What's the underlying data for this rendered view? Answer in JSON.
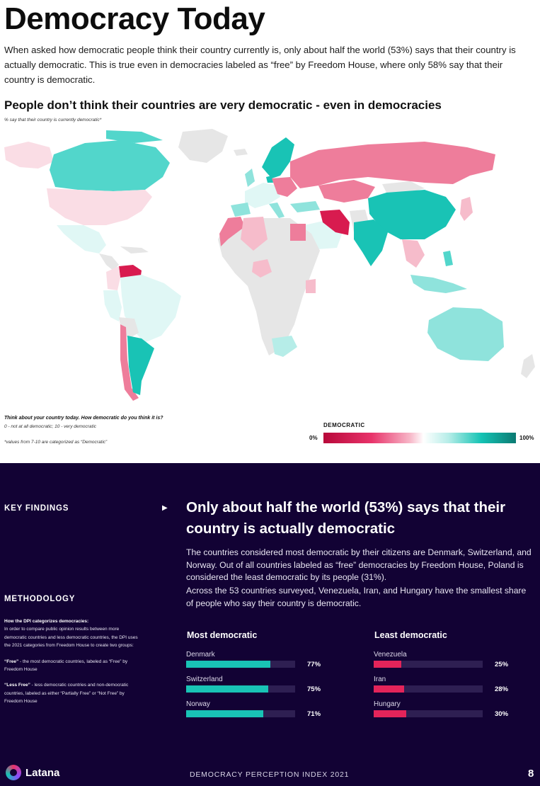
{
  "header": {
    "title": "Democracy Today",
    "intro": "When asked how democratic people think their country currently is, only about half the world (53%) says that their country is actually democratic. This is true even in democracies labeled as “free” by Freedom House, where only 58% say that their country is democratic."
  },
  "map": {
    "title": "People don’t think their countries are very democratic - even in democracies",
    "note": "% say that their country is currently democratic*",
    "question": "Think about your country today. How democratic do you think it is?",
    "scale_description": "0 - not at all democratic; 10 - very democratic",
    "values_note": "*values from 7-10 are categorized as “Democratic”",
    "legend": {
      "title": "DEMOCRATIC",
      "min_label": "0%",
      "max_label": "100%"
    },
    "colors": {
      "no_data": "#e6e6e6",
      "very_low": "#d81b4f",
      "low": "#ee7d9b",
      "mid_low": "#f6bccb",
      "light_low": "#fadde5",
      "light_high": "#e0f7f5",
      "mid_high": "#8fe3dc",
      "high": "#52d6cb",
      "very_high": "#19c3b5"
    }
  },
  "findings": {
    "key_findings_label": "KEY FINDINGS",
    "methodology_label": "METHODOLOGY",
    "methodology": {
      "heading": "How the DPI categorizes democracies:",
      "body": "In order to compare public opinion results between more democratic countries and less democratic countries, the DPI uses the 2021 categories from Freedom House to create two groups:",
      "free_term": "“Free”",
      "free_desc": " - the most democratic countries, labeled as “Free” by Freedom House",
      "less_free_term": "“Less Free”",
      "less_free_desc": " - less democratic countries and non-democratic countries, labeled as either “Partially Free” or “Not Free” by Freedom House"
    },
    "headline": "Only about half the world (53%) says that their country is actually democratic",
    "paragraph1": "The countries considered most democratic by their citizens are Denmark, Switzerland, and Norway. Out of all countries labeled as “free” democracies by Freedom House, Poland is considered the least democratic by its people (31%).",
    "paragraph2": "Across the 53 countries surveyed, Venezuela, Iran, and Hungary have the smallest share of people who say their country is democratic.",
    "most_title": "Most democratic",
    "least_title": "Least democratic",
    "most": [
      {
        "country": "Denmark",
        "value_label": "77%",
        "value": 77
      },
      {
        "country": "Switzerland",
        "value_label": "75%",
        "value": 75
      },
      {
        "country": "Norway",
        "value_label": "71%",
        "value": 71
      }
    ],
    "least": [
      {
        "country": "Venezuela",
        "value_label": "25%",
        "value": 25
      },
      {
        "country": "Iran",
        "value_label": "28%",
        "value": 28
      },
      {
        "country": "Hungary",
        "value_label": "30%",
        "value": 30
      }
    ],
    "most_color": "#19c3b5",
    "least_color": "#e3245a"
  },
  "footer": {
    "logo": "Latana",
    "center": "DEMOCRACY PERCEPTION INDEX 2021",
    "page": "8"
  }
}
